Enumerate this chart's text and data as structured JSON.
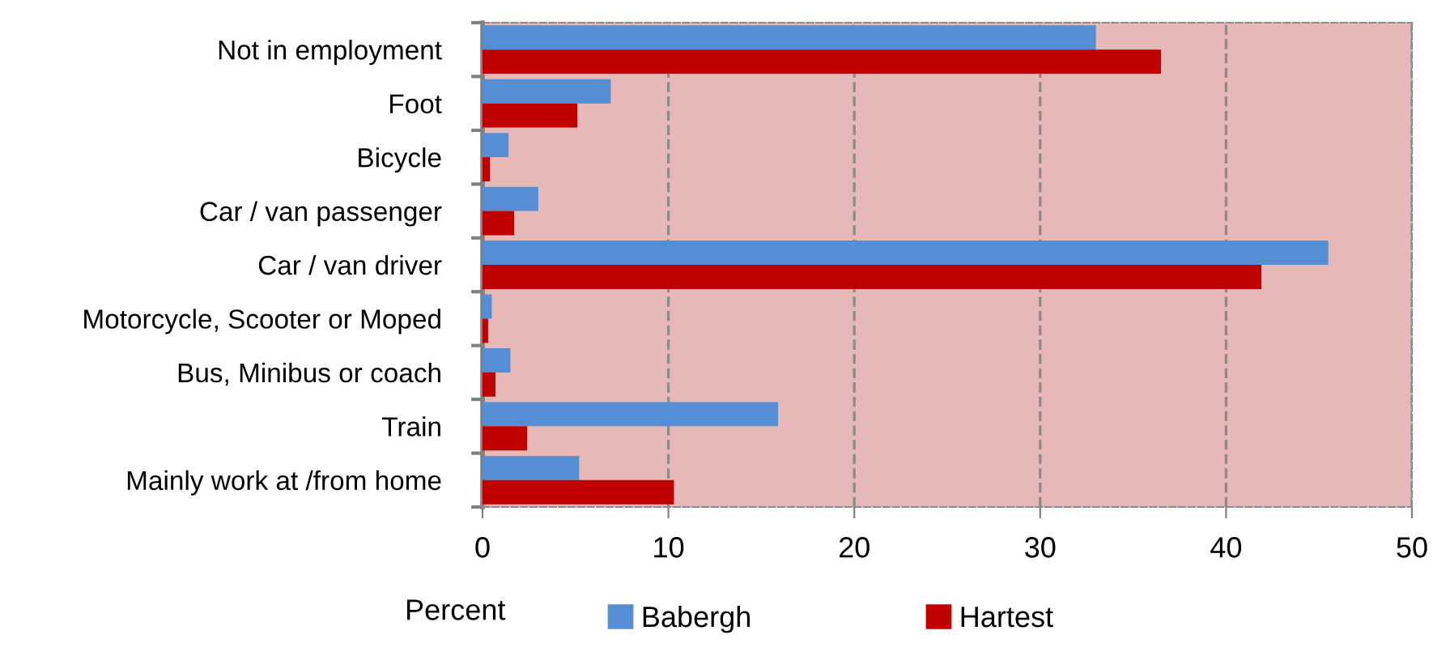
{
  "chart_data": {
    "type": "bar",
    "orientation": "horizontal",
    "xlabel": "Percent",
    "categories": [
      "Not in employment",
      "Foot",
      "Bicycle",
      "Car / van passenger",
      "Car / van driver",
      "Motorcycle, Scooter or Moped",
      "Bus, Minibus or coach",
      "Train",
      "Mainly work at /from home"
    ],
    "series": [
      {
        "name": "Babergh",
        "color": "#558ed5",
        "values": [
          33.0,
          6.9,
          1.4,
          3.0,
          45.5,
          0.5,
          1.5,
          15.9,
          5.2
        ]
      },
      {
        "name": "Hartest",
        "color": "#c00000",
        "values": [
          36.5,
          5.1,
          0.4,
          1.7,
          41.9,
          0.3,
          0.7,
          2.4,
          10.3
        ]
      }
    ],
    "xlim": [
      0,
      50
    ],
    "xticks": [
      0,
      10,
      20,
      30,
      40,
      50
    ],
    "grid": "x",
    "legend": "bottom"
  }
}
